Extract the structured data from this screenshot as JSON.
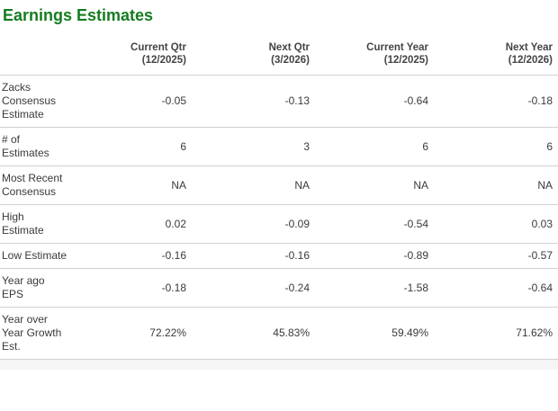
{
  "title": "Earnings Estimates",
  "colors": {
    "accent_green": "#157C20",
    "text": "#3a3a3a",
    "divider": "#d0d0d0",
    "footer_bg": "#f5f5f6"
  },
  "table": {
    "columns": [
      {
        "label": "Current Qtr",
        "period": "(12/2025)"
      },
      {
        "label": "Next Qtr",
        "period": "(3/2026)"
      },
      {
        "label": "Current Year",
        "period": "(12/2025)"
      },
      {
        "label": "Next Year",
        "period": "(12/2026)"
      }
    ],
    "rows": [
      {
        "label": "Zacks Consensus Estimate",
        "values": [
          "-0.05",
          "-0.13",
          "-0.64",
          "-0.18"
        ]
      },
      {
        "label": "# of Estimates",
        "values": [
          "6",
          "3",
          "6",
          "6"
        ]
      },
      {
        "label": "Most Recent Consensus",
        "values": [
          "NA",
          "NA",
          "NA",
          "NA"
        ]
      },
      {
        "label": "High Estimate",
        "values": [
          "0.02",
          "-0.09",
          "-0.54",
          "0.03"
        ]
      },
      {
        "label": "Low Estimate",
        "values": [
          "-0.16",
          "-0.16",
          "-0.89",
          "-0.57"
        ]
      },
      {
        "label": "Year ago EPS",
        "values": [
          "-0.18",
          "-0.24",
          "-1.58",
          "-0.64"
        ]
      },
      {
        "label": "Year over Year Growth Est.",
        "values": [
          "72.22%",
          "45.83%",
          "59.49%",
          "71.62%"
        ]
      }
    ]
  }
}
